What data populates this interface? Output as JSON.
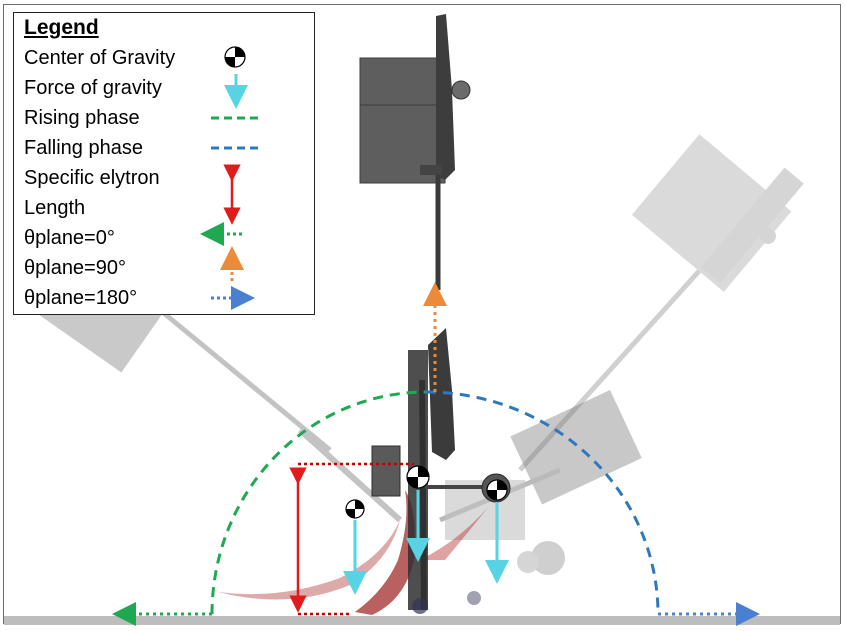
{
  "legend": {
    "title": "Legend",
    "items": [
      {
        "label": "Center of Gravity",
        "symbol": "cog-icon"
      },
      {
        "label": "Force of gravity",
        "symbol": "cyan-down-arrow"
      },
      {
        "label": "Rising phase",
        "symbol": "green-dashed-line"
      },
      {
        "label": "Falling phase",
        "symbol": "blue-dashed-line"
      },
      {
        "label": "Specific elytron",
        "symbol": "red-double-arrow"
      },
      {
        "label": "Length",
        "symbol": ""
      },
      {
        "label": "θplane=0°",
        "symbol": "green-dotted-left-arrow"
      },
      {
        "label": "θplane=90°",
        "symbol": "orange-dotted-up-arrow"
      },
      {
        "label": "θplane=180°",
        "symbol": "blue-dotted-right-arrow"
      }
    ]
  },
  "colors": {
    "rising": "#1fa84f",
    "falling": "#2e78c0",
    "gravity": "#57d3e3",
    "length": "#e01b1b",
    "plane90": "#ec8a3a",
    "plane180": "#4b7fd1",
    "ground": "#bdbdbd"
  }
}
